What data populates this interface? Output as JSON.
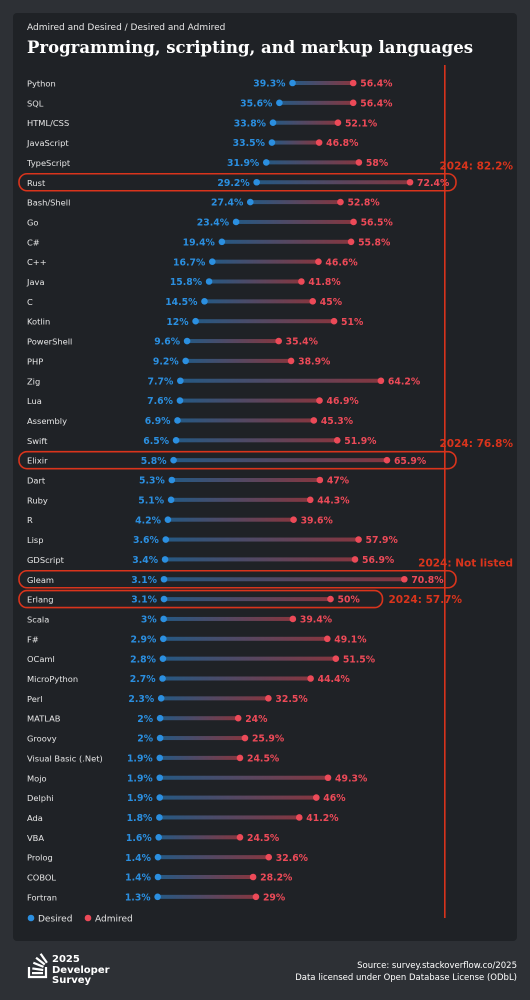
{
  "breadcrumb": "Admired and Desired / Desired and Admired",
  "title": "Programming, scripting, and markup languages",
  "colors": {
    "desired": "#2b8fe0",
    "admired": "#ec4a58",
    "highlight": "#d9341c",
    "label": "#e6e6e6"
  },
  "legend": {
    "desired": "Desired",
    "admired": "Admired"
  },
  "chart_data": {
    "type": "scatter",
    "style": "dumbbell",
    "xlim": [
      0,
      100
    ],
    "series": [
      {
        "name": "Desired",
        "color": "#2b8fe0"
      },
      {
        "name": "Admired",
        "color": "#ec4a58"
      }
    ],
    "rows": [
      {
        "language": "Python",
        "desired": 39.3,
        "admired": 56.4
      },
      {
        "language": "SQL",
        "desired": 35.6,
        "admired": 56.4
      },
      {
        "language": "HTML/CSS",
        "desired": 33.8,
        "admired": 52.1
      },
      {
        "language": "JavaScript",
        "desired": 33.5,
        "admired": 46.8
      },
      {
        "language": "TypeScript",
        "desired": 31.9,
        "admired": 58
      },
      {
        "language": "Rust",
        "desired": 29.2,
        "admired": 72.4
      },
      {
        "language": "Bash/Shell",
        "desired": 27.4,
        "admired": 52.8
      },
      {
        "language": "Go",
        "desired": 23.4,
        "admired": 56.5
      },
      {
        "language": "C#",
        "desired": 19.4,
        "admired": 55.8
      },
      {
        "language": "C++",
        "desired": 16.7,
        "admired": 46.6
      },
      {
        "language": "Java",
        "desired": 15.8,
        "admired": 41.8
      },
      {
        "language": "C",
        "desired": 14.5,
        "admired": 45
      },
      {
        "language": "Kotlin",
        "desired": 12,
        "admired": 51
      },
      {
        "language": "PowerShell",
        "desired": 9.6,
        "admired": 35.4
      },
      {
        "language": "PHP",
        "desired": 9.2,
        "admired": 38.9
      },
      {
        "language": "Zig",
        "desired": 7.7,
        "admired": 64.2
      },
      {
        "language": "Lua",
        "desired": 7.6,
        "admired": 46.9
      },
      {
        "language": "Assembly",
        "desired": 6.9,
        "admired": 45.3
      },
      {
        "language": "Swift",
        "desired": 6.5,
        "admired": 51.9
      },
      {
        "language": "Elixir",
        "desired": 5.8,
        "admired": 65.9
      },
      {
        "language": "Dart",
        "desired": 5.3,
        "admired": 47
      },
      {
        "language": "Ruby",
        "desired": 5.1,
        "admired": 44.3
      },
      {
        "language": "R",
        "desired": 4.2,
        "admired": 39.6
      },
      {
        "language": "Lisp",
        "desired": 3.6,
        "admired": 57.9
      },
      {
        "language": "GDScript",
        "desired": 3.4,
        "admired": 56.9
      },
      {
        "language": "Gleam",
        "desired": 3.1,
        "admired": 70.8
      },
      {
        "language": "Erlang",
        "desired": 3.1,
        "admired": 50
      },
      {
        "language": "Scala",
        "desired": 3,
        "admired": 39.4
      },
      {
        "language": "F#",
        "desired": 2.9,
        "admired": 49.1
      },
      {
        "language": "OCaml",
        "desired": 2.8,
        "admired": 51.5
      },
      {
        "language": "MicroPython",
        "desired": 2.7,
        "admired": 44.4
      },
      {
        "language": "Perl",
        "desired": 2.3,
        "admired": 32.5
      },
      {
        "language": "MATLAB",
        "desired": 2,
        "admired": 24
      },
      {
        "language": "Groovy",
        "desired": 2,
        "admired": 25.9
      },
      {
        "language": "Visual Basic (.Net)",
        "desired": 1.9,
        "admired": 24.5
      },
      {
        "language": "Mojo",
        "desired": 1.9,
        "admired": 49.3
      },
      {
        "language": "Delphi",
        "desired": 1.9,
        "admired": 46
      },
      {
        "language": "Ada",
        "desired": 1.8,
        "admired": 41.2
      },
      {
        "language": "VBA",
        "desired": 1.6,
        "admired": 24.5
      },
      {
        "language": "Prolog",
        "desired": 1.4,
        "admired": 32.6
      },
      {
        "language": "COBOL",
        "desired": 1.4,
        "admired": 28.2
      },
      {
        "language": "Fortran",
        "desired": 1.3,
        "admired": 29
      }
    ],
    "reference_line": {
      "value": 82.2,
      "color": "#d9341c"
    },
    "annotations": [
      {
        "row": "Rust",
        "text": "2024: 82.2%"
      },
      {
        "row": "Elixir",
        "text": "2024: 76.8%"
      },
      {
        "row": "Gleam",
        "text": "2024: Not listed"
      },
      {
        "row": "Erlang",
        "text": "2024:  57.7%"
      }
    ],
    "grid": false,
    "legend_position": "bottom-left"
  },
  "footer": {
    "brand_line1": "2025",
    "brand_line2": "Developer",
    "brand_line3": "Survey",
    "source": "Source: survey.stackoverflow.co/2025",
    "license": "Data licensed under Open Database License (ODbL)"
  }
}
